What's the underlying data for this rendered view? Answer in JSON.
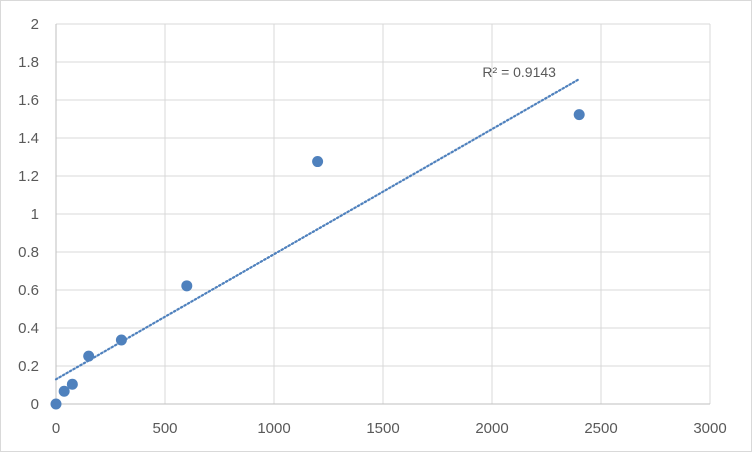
{
  "chart_data": {
    "type": "scatter",
    "title": "",
    "xlabel": "",
    "ylabel": "",
    "xlim": [
      0,
      3000
    ],
    "ylim": [
      0,
      2
    ],
    "xticks": [
      0,
      500,
      1000,
      1500,
      2000,
      2500,
      3000
    ],
    "yticks": [
      0,
      0.2,
      0.4,
      0.6,
      0.8,
      1,
      1.2,
      1.4,
      1.6,
      1.8,
      2
    ],
    "grid": true,
    "legend": "none",
    "series": [
      {
        "x": [
          0,
          37.5,
          75,
          150,
          300,
          600,
          1200,
          2400
        ],
        "y": [
          0.0,
          0.067,
          0.104,
          0.252,
          0.337,
          0.622,
          1.276,
          1.523
        ],
        "color": "#4f81bd"
      }
    ],
    "trendline": {
      "type": "linear",
      "x_range": [
        0,
        2400
      ],
      "y_range": [
        0.13,
        1.71
      ],
      "color": "#4f81bd",
      "style": "dotted",
      "label": "R² = 0.9143"
    }
  }
}
